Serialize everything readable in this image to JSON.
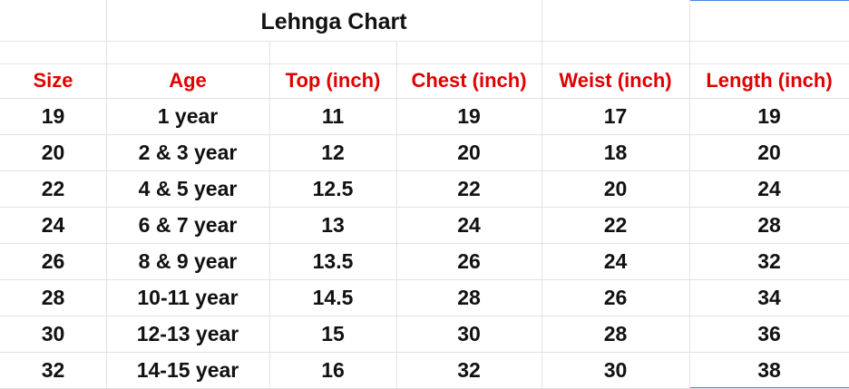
{
  "table": {
    "title": "Lehnga Chart",
    "header": [
      "Size",
      "Age",
      "Top (inch)",
      "Chest (inch)",
      "Weist (inch)",
      "Length (inch)"
    ],
    "rows": [
      [
        19,
        "1 year",
        11,
        19,
        17,
        19
      ],
      [
        20,
        "2 & 3 year",
        12,
        20,
        18,
        20
      ],
      [
        22,
        "4 & 5 year",
        12.5,
        22,
        20,
        24
      ],
      [
        24,
        "6 & 7 year",
        13,
        24,
        22,
        28
      ],
      [
        26,
        "8 & 9 year",
        13.5,
        26,
        24,
        32
      ],
      [
        28,
        "10-11 year",
        14.5,
        28,
        26,
        34
      ],
      [
        30,
        "12-13 year",
        15,
        30,
        28,
        36
      ],
      [
        32,
        "14-15 year",
        16,
        32,
        30,
        38
      ]
    ]
  }
}
